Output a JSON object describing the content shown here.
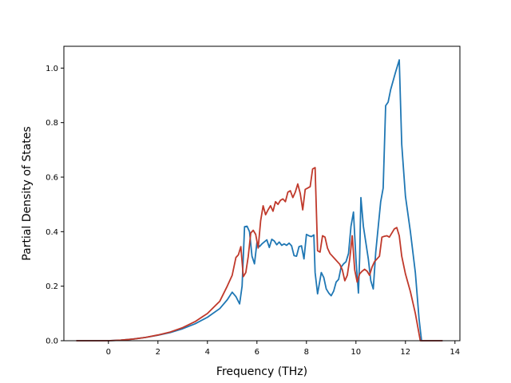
{
  "chart_data": {
    "type": "line",
    "xlabel": "Frequency (THz)",
    "ylabel": "Partial Density of States",
    "xlim": [
      -1.8,
      14.2
    ],
    "ylim": [
      0.0,
      1.08
    ],
    "xticks": [
      "0",
      "2",
      "4",
      "6",
      "8",
      "10",
      "12",
      "14"
    ],
    "yticks": [
      "0.0",
      "0.2",
      "0.4",
      "0.6",
      "0.8",
      "1.0"
    ],
    "grid": false,
    "series": [
      {
        "color": "#1f77b4",
        "points": [
          [
            -1.3,
            0
          ],
          [
            0.0,
            0
          ],
          [
            0.5,
            0.002
          ],
          [
            1.0,
            0.006
          ],
          [
            1.5,
            0.012
          ],
          [
            2.0,
            0.02
          ],
          [
            2.5,
            0.03
          ],
          [
            3.0,
            0.044
          ],
          [
            3.5,
            0.062
          ],
          [
            4.0,
            0.086
          ],
          [
            4.5,
            0.118
          ],
          [
            4.8,
            0.15
          ],
          [
            5.0,
            0.178
          ],
          [
            5.15,
            0.162
          ],
          [
            5.3,
            0.135
          ],
          [
            5.4,
            0.2
          ],
          [
            5.5,
            0.418
          ],
          [
            5.6,
            0.42
          ],
          [
            5.7,
            0.4
          ],
          [
            5.8,
            0.31
          ],
          [
            5.9,
            0.282
          ],
          [
            6.0,
            0.36
          ],
          [
            6.1,
            0.345
          ],
          [
            6.2,
            0.355
          ],
          [
            6.4,
            0.37
          ],
          [
            6.5,
            0.342
          ],
          [
            6.6,
            0.372
          ],
          [
            6.7,
            0.366
          ],
          [
            6.8,
            0.352
          ],
          [
            6.9,
            0.362
          ],
          [
            7.0,
            0.35
          ],
          [
            7.1,
            0.355
          ],
          [
            7.2,
            0.35
          ],
          [
            7.3,
            0.358
          ],
          [
            7.4,
            0.348
          ],
          [
            7.5,
            0.312
          ],
          [
            7.6,
            0.31
          ],
          [
            7.7,
            0.345
          ],
          [
            7.8,
            0.348
          ],
          [
            7.9,
            0.3
          ],
          [
            8.0,
            0.39
          ],
          [
            8.1,
            0.385
          ],
          [
            8.2,
            0.382
          ],
          [
            8.3,
            0.388
          ],
          [
            8.35,
            0.25
          ],
          [
            8.45,
            0.172
          ],
          [
            8.6,
            0.25
          ],
          [
            8.7,
            0.232
          ],
          [
            8.8,
            0.19
          ],
          [
            8.9,
            0.175
          ],
          [
            9.0,
            0.165
          ],
          [
            9.1,
            0.182
          ],
          [
            9.2,
            0.215
          ],
          [
            9.3,
            0.225
          ],
          [
            9.4,
            0.27
          ],
          [
            9.5,
            0.282
          ],
          [
            9.6,
            0.29
          ],
          [
            9.7,
            0.32
          ],
          [
            9.8,
            0.42
          ],
          [
            9.9,
            0.472
          ],
          [
            10.0,
            0.3
          ],
          [
            10.1,
            0.175
          ],
          [
            10.15,
            0.305
          ],
          [
            10.2,
            0.525
          ],
          [
            10.3,
            0.42
          ],
          [
            10.4,
            0.36
          ],
          [
            10.5,
            0.3
          ],
          [
            10.6,
            0.22
          ],
          [
            10.7,
            0.19
          ],
          [
            10.8,
            0.325
          ],
          [
            11.0,
            0.51
          ],
          [
            11.1,
            0.56
          ],
          [
            11.2,
            0.862
          ],
          [
            11.3,
            0.875
          ],
          [
            11.4,
            0.92
          ],
          [
            11.6,
            0.985
          ],
          [
            11.75,
            1.03
          ],
          [
            11.85,
            0.72
          ],
          [
            12.0,
            0.53
          ],
          [
            12.2,
            0.4
          ],
          [
            12.4,
            0.25
          ],
          [
            12.55,
            0.08
          ],
          [
            12.65,
            0.0
          ],
          [
            13.5,
            0
          ]
        ]
      },
      {
        "color": "#c0392b",
        "points": [
          [
            -1.3,
            0
          ],
          [
            0.0,
            0
          ],
          [
            0.5,
            0.002
          ],
          [
            1.0,
            0.006
          ],
          [
            1.5,
            0.012
          ],
          [
            2.0,
            0.021
          ],
          [
            2.5,
            0.032
          ],
          [
            3.0,
            0.048
          ],
          [
            3.5,
            0.07
          ],
          [
            4.0,
            0.1
          ],
          [
            4.5,
            0.145
          ],
          [
            4.8,
            0.2
          ],
          [
            5.0,
            0.24
          ],
          [
            5.15,
            0.305
          ],
          [
            5.25,
            0.315
          ],
          [
            5.35,
            0.345
          ],
          [
            5.45,
            0.235
          ],
          [
            5.55,
            0.25
          ],
          [
            5.65,
            0.31
          ],
          [
            5.75,
            0.395
          ],
          [
            5.85,
            0.405
          ],
          [
            5.95,
            0.39
          ],
          [
            6.05,
            0.34
          ],
          [
            6.15,
            0.44
          ],
          [
            6.25,
            0.495
          ],
          [
            6.35,
            0.462
          ],
          [
            6.45,
            0.48
          ],
          [
            6.55,
            0.495
          ],
          [
            6.65,
            0.475
          ],
          [
            6.75,
            0.51
          ],
          [
            6.85,
            0.5
          ],
          [
            6.95,
            0.515
          ],
          [
            7.05,
            0.52
          ],
          [
            7.15,
            0.51
          ],
          [
            7.25,
            0.545
          ],
          [
            7.35,
            0.55
          ],
          [
            7.45,
            0.525
          ],
          [
            7.55,
            0.545
          ],
          [
            7.65,
            0.575
          ],
          [
            7.75,
            0.54
          ],
          [
            7.85,
            0.48
          ],
          [
            7.95,
            0.555
          ],
          [
            8.05,
            0.56
          ],
          [
            8.15,
            0.565
          ],
          [
            8.25,
            0.63
          ],
          [
            8.35,
            0.635
          ],
          [
            8.45,
            0.33
          ],
          [
            8.55,
            0.325
          ],
          [
            8.65,
            0.385
          ],
          [
            8.75,
            0.38
          ],
          [
            8.85,
            0.34
          ],
          [
            8.95,
            0.32
          ],
          [
            9.05,
            0.31
          ],
          [
            9.15,
            0.3
          ],
          [
            9.25,
            0.29
          ],
          [
            9.35,
            0.28
          ],
          [
            9.45,
            0.26
          ],
          [
            9.55,
            0.22
          ],
          [
            9.65,
            0.24
          ],
          [
            9.75,
            0.3
          ],
          [
            9.85,
            0.385
          ],
          [
            9.95,
            0.26
          ],
          [
            10.05,
            0.215
          ],
          [
            10.15,
            0.245
          ],
          [
            10.25,
            0.255
          ],
          [
            10.35,
            0.262
          ],
          [
            10.45,
            0.255
          ],
          [
            10.55,
            0.24
          ],
          [
            10.65,
            0.27
          ],
          [
            10.75,
            0.29
          ],
          [
            10.85,
            0.3
          ],
          [
            10.95,
            0.31
          ],
          [
            11.05,
            0.38
          ],
          [
            11.15,
            0.383
          ],
          [
            11.25,
            0.385
          ],
          [
            11.35,
            0.38
          ],
          [
            11.45,
            0.395
          ],
          [
            11.55,
            0.41
          ],
          [
            11.65,
            0.415
          ],
          [
            11.75,
            0.385
          ],
          [
            11.85,
            0.31
          ],
          [
            12.0,
            0.245
          ],
          [
            12.2,
            0.18
          ],
          [
            12.4,
            0.1
          ],
          [
            12.6,
            0.0
          ],
          [
            13.5,
            0
          ]
        ]
      }
    ]
  }
}
